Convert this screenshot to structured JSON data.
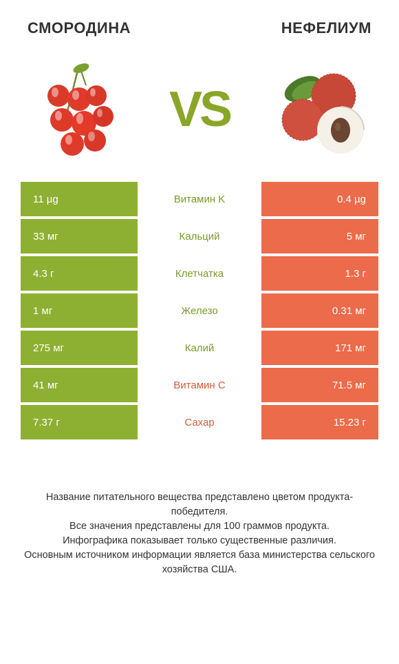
{
  "colors": {
    "left": "#8db032",
    "right": "#eb6b4a",
    "left_label": "#7a9a2a",
    "right_label": "#d9593a",
    "bg": "#ffffff"
  },
  "header": {
    "left_title": "СМОРОДИНА",
    "right_title": "НЕФЕЛИУМ",
    "vs": "VS"
  },
  "rows": [
    {
      "left": "11 µg",
      "label": "Витамин K",
      "right": "0.4 µg",
      "winner": "left"
    },
    {
      "left": "33 мг",
      "label": "Кальций",
      "right": "5 мг",
      "winner": "left"
    },
    {
      "left": "4.3 г",
      "label": "Клетчатка",
      "right": "1.3 г",
      "winner": "left"
    },
    {
      "left": "1 мг",
      "label": "Железо",
      "right": "0.31 мг",
      "winner": "left"
    },
    {
      "left": "275 мг",
      "label": "Калий",
      "right": "171 мг",
      "winner": "left"
    },
    {
      "left": "41 мг",
      "label": "Витамин C",
      "right": "71.5 мг",
      "winner": "right"
    },
    {
      "left": "7.37 г",
      "label": "Сахар",
      "right": "15.23 г",
      "winner": "right"
    }
  ],
  "footer": {
    "line1": "Название питательного вещества представлено цветом продукта-победителя.",
    "line2": "Все значения представлены для 100 граммов продукта.",
    "line3": "Инфографика показывает только существенные различия.",
    "line4": "Основным источником информации является база министерства сельского хозяйства США."
  }
}
